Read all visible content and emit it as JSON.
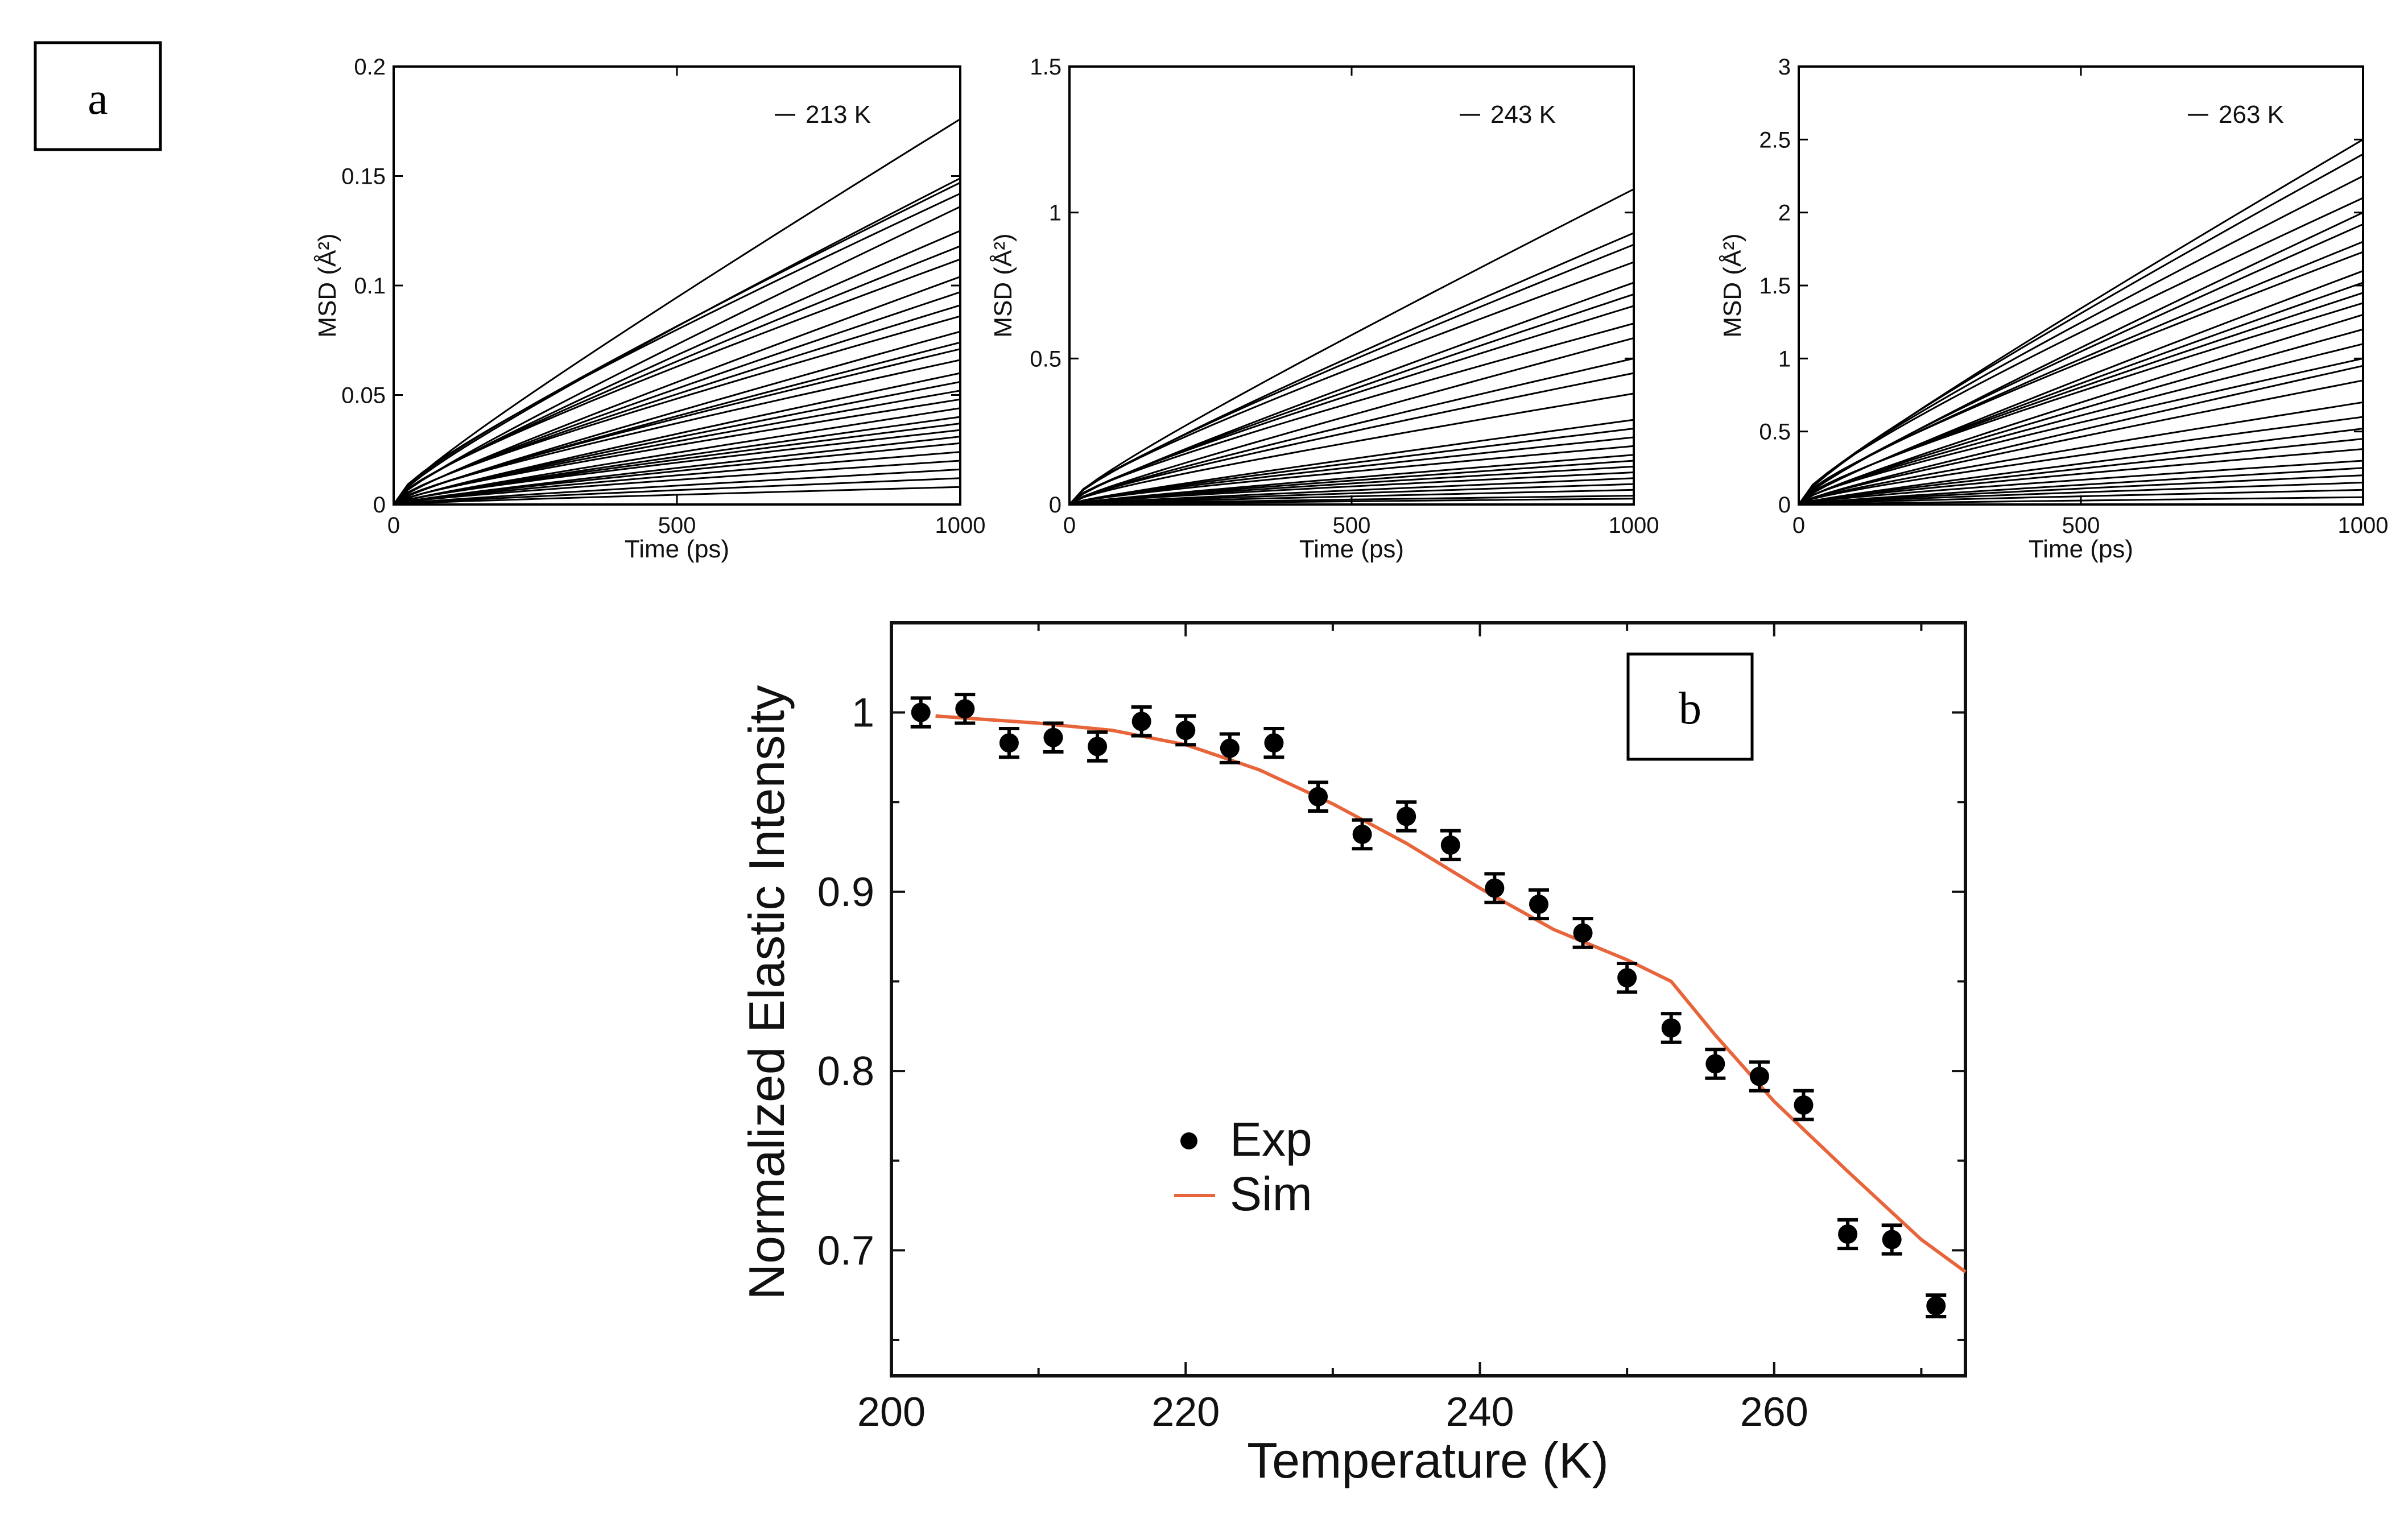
{
  "panel_labels": {
    "a": "a",
    "b": "b"
  },
  "colors": {
    "sim_line": "#e8643a",
    "exp_marker": "#000000",
    "msd_line": "#000000"
  },
  "chart_data": [
    {
      "type": "line",
      "panel": "a",
      "title": "",
      "xlabel": "Time (ps)",
      "ylabel": "MSD (Å²)",
      "xlim": [
        0,
        1000
      ],
      "ylim": [
        0,
        0.2
      ],
      "xticks": [
        "0",
        "500",
        "1000"
      ],
      "yticks": [
        "0",
        "0.05",
        "0.1",
        "0.15",
        "0.2"
      ],
      "legend": "213 K",
      "series_end_values": [
        0.176,
        0.149,
        0.147,
        0.142,
        0.136,
        0.125,
        0.118,
        0.112,
        0.104,
        0.097,
        0.091,
        0.086,
        0.079,
        0.074,
        0.071,
        0.066,
        0.06,
        0.056,
        0.052,
        0.048,
        0.044,
        0.04,
        0.037,
        0.034,
        0.031,
        0.028,
        0.024,
        0.02,
        0.016,
        0.012,
        0.008
      ]
    },
    {
      "type": "line",
      "panel": "a",
      "title": "",
      "xlabel": "Time (ps)",
      "ylabel": "MSD (Å²)",
      "xlim": [
        0,
        1000
      ],
      "ylim": [
        0,
        1.5
      ],
      "xticks": [
        "0",
        "500",
        "1000"
      ],
      "yticks": [
        "0",
        "0.5",
        "1",
        "1.5"
      ],
      "legend": "243 K",
      "series_end_values": [
        1.08,
        0.93,
        0.89,
        0.83,
        0.76,
        0.72,
        0.68,
        0.62,
        0.57,
        0.5,
        0.45,
        0.38,
        0.29,
        0.26,
        0.23,
        0.2,
        0.17,
        0.15,
        0.13,
        0.11,
        0.09,
        0.07,
        0.05,
        0.03,
        0.02
      ]
    },
    {
      "type": "line",
      "panel": "a",
      "title": "",
      "xlabel": "Time (ps)",
      "ylabel": "MSD (Å²)",
      "xlim": [
        0,
        1000
      ],
      "ylim": [
        0,
        3
      ],
      "xticks": [
        "0",
        "500",
        "1000"
      ],
      "yticks": [
        "0",
        "0.5",
        "1",
        "1.5",
        "2",
        "2.5",
        "3"
      ],
      "legend": "263 K",
      "series_end_values": [
        2.5,
        2.4,
        2.25,
        2.1,
        2.0,
        1.92,
        1.8,
        1.73,
        1.6,
        1.52,
        1.45,
        1.38,
        1.3,
        1.2,
        1.1,
        1.0,
        0.95,
        0.85,
        0.7,
        0.6,
        0.52,
        0.45,
        0.38,
        0.3,
        0.25,
        0.2,
        0.15,
        0.1,
        0.05
      ]
    },
    {
      "type": "scatter",
      "panel": "b",
      "title": "",
      "xlabel": "Temperature (K)",
      "ylabel": "Normalized Elastic Intensity",
      "xlim": [
        200,
        273
      ],
      "ylim": [
        0.63,
        1.05
      ],
      "xticks": [
        "200",
        "220",
        "240",
        "260"
      ],
      "yticks": [
        "0.7",
        "0.8",
        "0.9",
        "1"
      ],
      "legend": [
        "Exp",
        "Sim"
      ],
      "series": [
        {
          "name": "Exp",
          "x": [
            202,
            205,
            208,
            211,
            214,
            217,
            220,
            223,
            226,
            229,
            232,
            235,
            238,
            241,
            244,
            247,
            250,
            253,
            256,
            259,
            262,
            265,
            268,
            271
          ],
          "y": [
            1.0,
            1.002,
            0.983,
            0.986,
            0.981,
            0.995,
            0.99,
            0.98,
            0.983,
            0.953,
            0.932,
            0.942,
            0.926,
            0.902,
            0.893,
            0.877,
            0.852,
            0.824,
            0.804,
            0.797,
            0.781,
            0.709,
            0.706,
            0.669
          ],
          "error": [
            0.008,
            0.008,
            0.008,
            0.008,
            0.008,
            0.008,
            0.008,
            0.008,
            0.008,
            0.008,
            0.008,
            0.008,
            0.008,
            0.008,
            0.008,
            0.008,
            0.008,
            0.008,
            0.008,
            0.008,
            0.008,
            0.008,
            0.008,
            0.006
          ]
        },
        {
          "name": "Sim",
          "x": [
            203,
            210,
            215,
            220,
            225,
            230,
            235,
            240,
            245,
            250,
            253,
            256,
            260,
            265,
            270,
            273
          ],
          "y": [
            0.998,
            0.994,
            0.99,
            0.982,
            0.968,
            0.949,
            0.927,
            0.902,
            0.879,
            0.862,
            0.85,
            0.82,
            0.783,
            0.744,
            0.706,
            0.688
          ]
        }
      ]
    }
  ]
}
